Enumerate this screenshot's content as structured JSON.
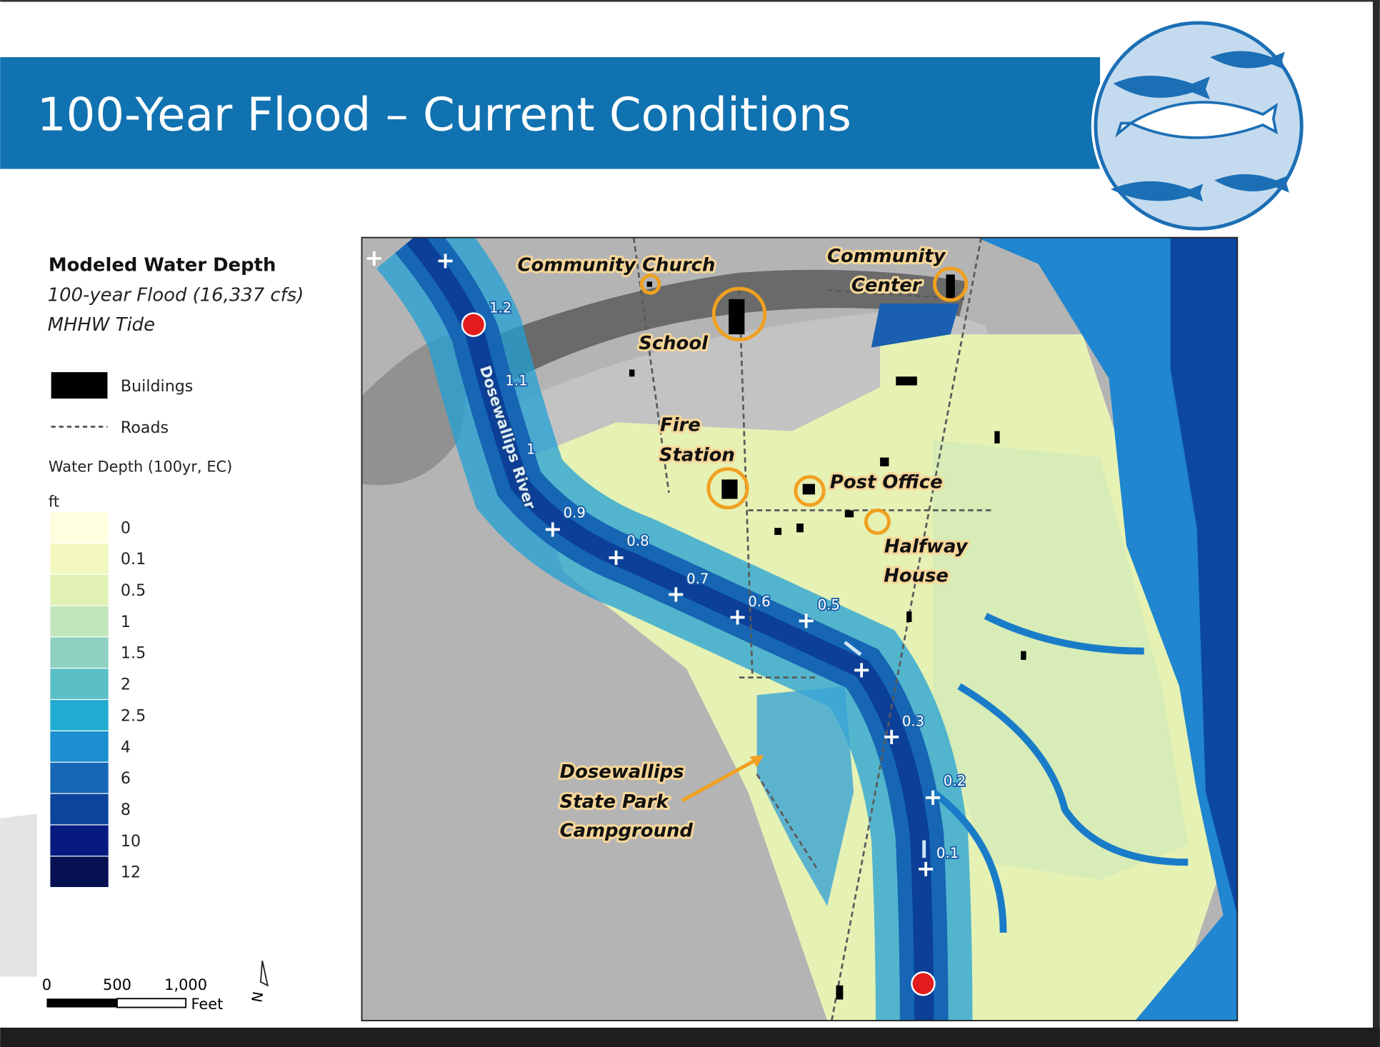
{
  "header": {
    "title": "100-Year Flood – Current Conditions"
  },
  "legend": {
    "title": "Modeled Water Depth",
    "subtitle": [
      "100-year Flood (16,337 cfs)",
      "MHHW Tide"
    ],
    "items": [
      "Buildings",
      "Roads"
    ],
    "depth_title": "Water Depth (100yr, EC)",
    "unit": "ft",
    "depth_classes": [
      {
        "label": "0",
        "color": "#ffffe0"
      },
      {
        "label": "0.1",
        "color": "#f3f8c0"
      },
      {
        "label": "0.5",
        "color": "#e1f0b4"
      },
      {
        "label": "1",
        "color": "#c2e6bb"
      },
      {
        "label": "1.5",
        "color": "#8fd1c0"
      },
      {
        "label": "2",
        "color": "#5bbfc6"
      },
      {
        "label": "2.5",
        "color": "#22abd0"
      },
      {
        "label": "4",
        "color": "#1b8fd0"
      },
      {
        "label": "6",
        "color": "#1668b7"
      },
      {
        "label": "8",
        "color": "#0b449a"
      },
      {
        "label": "10",
        "color": "#061a80"
      },
      {
        "label": "12",
        "color": "#071050"
      }
    ]
  },
  "scale_bar": {
    "labels": [
      "0",
      "500",
      "1,000"
    ],
    "unit": "Feet"
  },
  "north_arrow": "N",
  "map": {
    "places": [
      [
        "Community Church"
      ],
      [
        "Community",
        "Center"
      ],
      [
        "School"
      ],
      [
        "Fire",
        "Station"
      ],
      [
        "Post Office"
      ],
      [
        "Halfway",
        "House"
      ],
      [
        "Dosewallips",
        "State Park",
        "Campground"
      ]
    ],
    "river_name": "Dosewallips River",
    "river_miles": [
      "1.2",
      "1.1",
      "1",
      "0.9",
      "0.8",
      "0.7",
      "0.6",
      "0.5",
      "0.3",
      "0.2",
      "0.1"
    ]
  }
}
